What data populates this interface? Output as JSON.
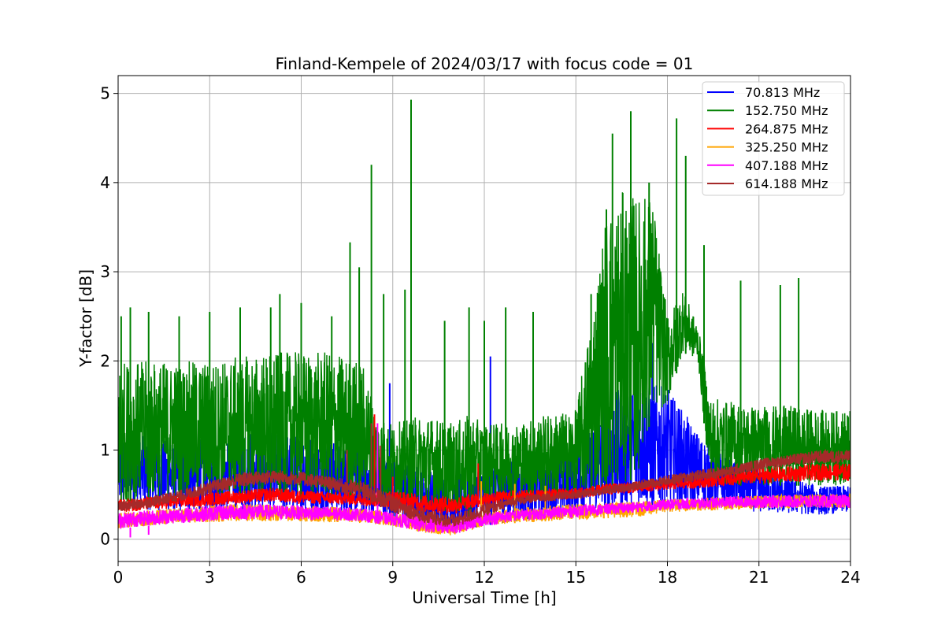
{
  "chart_data": {
    "type": "line",
    "title": "Finland-Kempele of 2024/03/17 with focus code = 01",
    "xlabel": "Universal Time [h]",
    "ylabel": "Y-factor [dB]",
    "xlim": [
      0,
      24
    ],
    "ylim": [
      -0.25,
      5.2
    ],
    "xticks": [
      0,
      3,
      6,
      9,
      12,
      15,
      18,
      21,
      24
    ],
    "xtick_labels": [
      "0",
      "3",
      "6",
      "9",
      "12",
      "15",
      "18",
      "21",
      "24"
    ],
    "yticks": [
      0,
      1,
      2,
      3,
      4,
      5
    ],
    "ytick_labels": [
      "0",
      "1",
      "2",
      "3",
      "4",
      "5"
    ],
    "grid": true,
    "legend_position": "top-right",
    "series": [
      {
        "name": " 70.813 MHz",
        "color": "#0000ff",
        "band": true,
        "x": [
          0,
          2,
          4,
          6,
          8,
          9,
          10,
          11,
          12,
          13,
          15,
          16,
          17,
          18,
          19,
          20,
          21,
          22,
          23,
          24
        ],
        "low": [
          0.35,
          0.3,
          0.3,
          0.28,
          0.25,
          0.2,
          0.12,
          0.08,
          0.15,
          0.2,
          0.28,
          0.3,
          0.33,
          0.35,
          0.33,
          0.35,
          0.3,
          0.28,
          0.27,
          0.3
        ],
        "high": [
          1.2,
          1.1,
          1.2,
          1.2,
          1.0,
          0.9,
          0.8,
          0.7,
          0.9,
          0.9,
          1.0,
          1.6,
          1.8,
          1.7,
          1.2,
          0.9,
          0.8,
          0.7,
          0.6,
          0.6
        ],
        "spikes": [
          [
            8.9,
            1.75
          ],
          [
            12.2,
            2.05
          ],
          [
            16.2,
            2.6
          ],
          [
            17.5,
            2.2
          ]
        ]
      },
      {
        "name": "152.750 MHz",
        "color": "#008000",
        "band": true,
        "x": [
          0,
          1,
          2,
          3,
          4,
          5,
          6,
          7,
          8,
          8.5,
          9,
          10,
          11,
          11.5,
          12,
          13,
          14,
          15,
          15.5,
          16,
          16.5,
          17,
          17.5,
          18,
          18.5,
          19,
          19.4,
          20,
          21,
          22,
          23,
          24
        ],
        "low": [
          0.4,
          0.45,
          0.45,
          0.45,
          0.45,
          0.45,
          0.45,
          0.45,
          0.45,
          0.4,
          0.4,
          0.35,
          0.3,
          0.25,
          0.45,
          0.45,
          0.45,
          0.45,
          0.5,
          0.55,
          0.6,
          0.7,
          1.4,
          1.5,
          2.1,
          2.0,
          0.6,
          0.6,
          0.6,
          0.6,
          0.6,
          0.6
        ],
        "high": [
          2.0,
          2.0,
          2.0,
          2.0,
          2.05,
          2.1,
          2.1,
          2.1,
          2.0,
          1.4,
          1.3,
          1.4,
          1.3,
          1.4,
          1.3,
          1.3,
          1.4,
          1.45,
          2.5,
          3.7,
          3.9,
          3.85,
          3.9,
          2.5,
          2.8,
          2.4,
          1.6,
          1.55,
          1.5,
          1.5,
          1.45,
          1.45
        ],
        "spikes": [
          [
            0.1,
            2.5
          ],
          [
            0.4,
            2.6
          ],
          [
            1.0,
            2.55
          ],
          [
            2.0,
            2.5
          ],
          [
            3.0,
            2.55
          ],
          [
            4.0,
            2.6
          ],
          [
            5.0,
            2.6
          ],
          [
            5.3,
            2.75
          ],
          [
            6.0,
            2.65
          ],
          [
            7.0,
            2.5
          ],
          [
            7.6,
            3.33
          ],
          [
            7.9,
            3.05
          ],
          [
            8.3,
            4.2
          ],
          [
            8.7,
            2.75
          ],
          [
            9.4,
            2.8
          ],
          [
            9.6,
            4.93
          ],
          [
            10.7,
            2.45
          ],
          [
            11.5,
            2.6
          ],
          [
            12.0,
            2.45
          ],
          [
            12.7,
            2.6
          ],
          [
            13.6,
            2.55
          ],
          [
            15.5,
            2.75
          ],
          [
            16.0,
            3.7
          ],
          [
            16.2,
            4.55
          ],
          [
            16.8,
            4.8
          ],
          [
            17.4,
            4.0
          ],
          [
            18.3,
            4.72
          ],
          [
            18.6,
            4.3
          ],
          [
            19.2,
            3.3
          ],
          [
            20.4,
            2.9
          ],
          [
            21.7,
            2.85
          ],
          [
            22.3,
            2.93
          ]
        ]
      },
      {
        "name": "264.875 MHz",
        "color": "#ff0000",
        "band": true,
        "x": [
          0,
          2,
          4,
          5,
          6,
          8,
          9,
          10,
          11,
          12,
          13,
          15,
          16,
          17,
          18,
          19,
          20,
          21,
          22,
          23,
          24
        ],
        "low": [
          0.3,
          0.35,
          0.4,
          0.42,
          0.4,
          0.38,
          0.35,
          0.3,
          0.28,
          0.38,
          0.42,
          0.45,
          0.5,
          0.52,
          0.55,
          0.57,
          0.6,
          0.62,
          0.64,
          0.66,
          0.65
        ],
        "high": [
          0.45,
          0.5,
          0.55,
          0.58,
          0.55,
          0.52,
          0.55,
          0.5,
          0.48,
          0.52,
          0.55,
          0.58,
          0.62,
          0.65,
          0.68,
          0.72,
          0.75,
          0.8,
          0.82,
          0.85,
          0.85
        ],
        "spikes": [
          [
            8.4,
            1.4
          ],
          [
            9.0,
            0.7
          ],
          [
            11.8,
            0.85
          ]
        ]
      },
      {
        "name": "325.250 MHz",
        "color": "#ffa500",
        "band": true,
        "x": [
          0,
          2,
          4,
          6,
          8,
          9,
          10,
          11,
          12,
          13,
          15,
          17,
          18,
          20,
          22,
          24
        ],
        "low": [
          0.12,
          0.18,
          0.2,
          0.2,
          0.18,
          0.15,
          0.07,
          0.04,
          0.15,
          0.18,
          0.22,
          0.25,
          0.3,
          0.33,
          0.35,
          0.35
        ],
        "high": [
          0.3,
          0.35,
          0.4,
          0.38,
          0.35,
          0.3,
          0.25,
          0.2,
          0.3,
          0.35,
          0.4,
          0.42,
          0.45,
          0.48,
          0.5,
          0.52
        ],
        "spikes": [
          [
            11.9,
            0.65
          ],
          [
            13.0,
            0.62
          ],
          [
            14.0,
            0.6
          ]
        ]
      },
      {
        "name": "407.188 MHz",
        "color": "#ff00ff",
        "band": true,
        "x": [
          0,
          2,
          4,
          6,
          8,
          9,
          10,
          11,
          12,
          13,
          15,
          17,
          18,
          20,
          22,
          24
        ],
        "low": [
          0.12,
          0.18,
          0.22,
          0.22,
          0.2,
          0.15,
          0.08,
          0.05,
          0.15,
          0.2,
          0.25,
          0.3,
          0.33,
          0.35,
          0.35,
          0.35
        ],
        "high": [
          0.3,
          0.35,
          0.4,
          0.38,
          0.35,
          0.3,
          0.25,
          0.22,
          0.3,
          0.33,
          0.38,
          0.42,
          0.45,
          0.48,
          0.5,
          0.5
        ],
        "spikes": [
          [
            0.4,
            0.02
          ],
          [
            1.0,
            0.05
          ],
          [
            8.5,
            1.3
          ]
        ]
      },
      {
        "name": "614.188 MHz",
        "color": "#a52a2a",
        "band": true,
        "x": [
          0,
          1,
          2,
          3,
          4,
          5,
          6,
          7,
          8,
          9,
          10,
          11,
          12,
          13,
          14,
          15,
          16,
          17,
          18,
          19,
          20,
          21,
          22,
          23,
          24
        ],
        "low": [
          0.3,
          0.35,
          0.42,
          0.5,
          0.58,
          0.62,
          0.6,
          0.55,
          0.45,
          0.3,
          0.18,
          0.12,
          0.25,
          0.38,
          0.42,
          0.45,
          0.5,
          0.55,
          0.6,
          0.65,
          0.7,
          0.78,
          0.82,
          0.85,
          0.85
        ],
        "high": [
          0.42,
          0.48,
          0.55,
          0.65,
          0.75,
          0.78,
          0.76,
          0.7,
          0.65,
          0.5,
          0.35,
          0.28,
          0.4,
          0.48,
          0.52,
          0.55,
          0.6,
          0.65,
          0.72,
          0.78,
          0.82,
          0.9,
          0.95,
          1.0,
          1.0
        ],
        "spikes": [
          [
            7.5,
            1.0
          ],
          [
            8.3,
            1.3
          ],
          [
            8.6,
            1.05
          ]
        ]
      }
    ]
  }
}
